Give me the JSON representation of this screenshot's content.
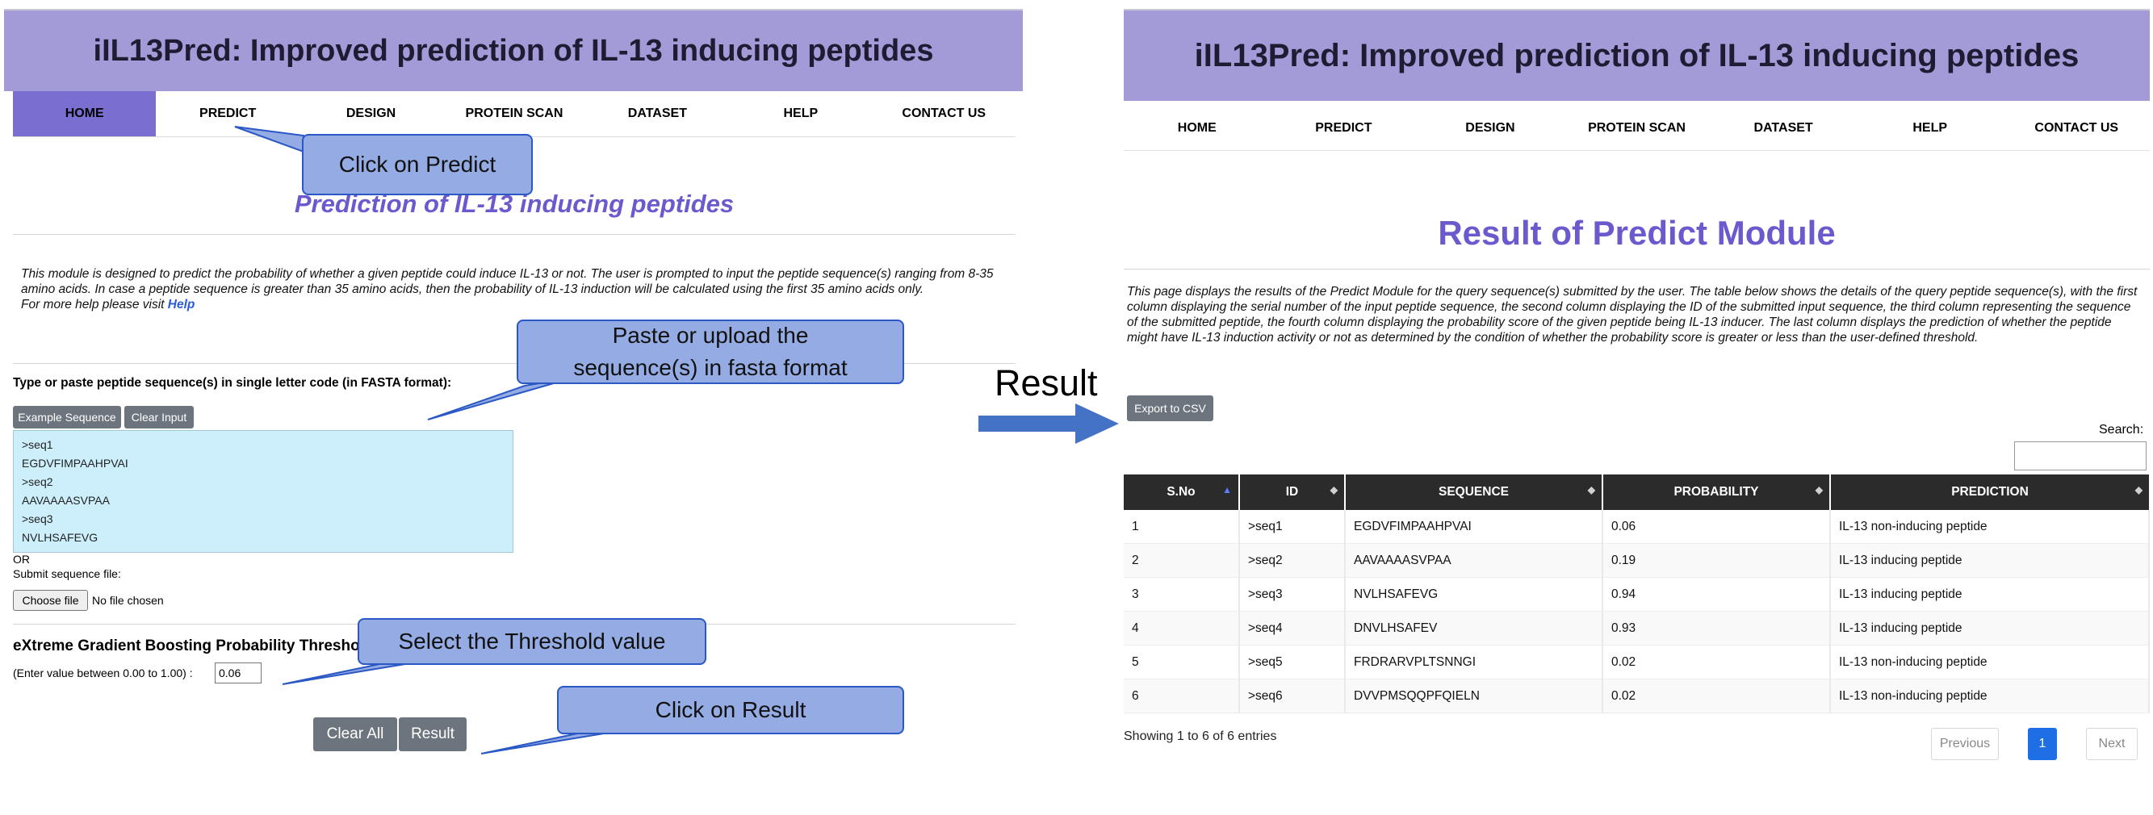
{
  "left": {
    "title": "iIL13Pred: Improved prediction of IL-13 inducing peptides",
    "nav": [
      "HOME",
      "PREDICT",
      "DESIGN",
      "PROTEIN SCAN",
      "DATASET",
      "HELP",
      "CONTACT US"
    ],
    "nav_active": "HOME",
    "heading": "Prediction of IL-13 inducing peptides",
    "description": "This module is designed to predict the probability of whether a given peptide could induce IL-13 or not. The user is prompted to input the peptide sequence(s) ranging from 8-35 amino acids. In case a peptide sequence is greater than 35 amino acids, then the probability of IL-13 induction will be calculated using the first 35 amino acids only.",
    "help_prefix": "For more help please visit",
    "help_link": "Help",
    "input_label": "Type or paste peptide sequence(s) in single letter code (in FASTA format):",
    "example_button": "Example Sequence",
    "clear_input_button": "Clear Input",
    "sequence_text": ">seq1\nEGDVFIMPAAHPVAI\n>seq2\nAAVAAAASVPAA\n>seq3\nNVLHSAFEVG",
    "or_text": "OR",
    "submit_file_label": "Submit sequence file:",
    "choose_file_button": "Choose file",
    "file_status": "No file chosen",
    "threshold_label": "eXtreme Gradient Boosting Probability Threshold:",
    "threshold_hint": "(Enter value between 0.00 to 1.00) :",
    "threshold_value": "0.06",
    "clear_all_button": "Clear All",
    "result_button": "Result"
  },
  "callouts": {
    "predict": "Click on Predict",
    "paste": "Paste or upload the sequence(s) in fasta format",
    "threshold": "Select the Threshold value",
    "result": "Click on Result"
  },
  "center_label": "Result",
  "right": {
    "title": "iIL13Pred: Improved prediction of IL-13 inducing peptides",
    "nav": [
      "HOME",
      "PREDICT",
      "DESIGN",
      "PROTEIN SCAN",
      "DATASET",
      "HELP",
      "CONTACT US"
    ],
    "heading": "Result of Predict Module",
    "description": "This page displays the results of the Predict Module for the query sequence(s) submitted by the user. The table below shows the details of the query peptide sequence(s), with the first column displaying the serial number of the input peptide sequence, the second column displaying the ID of the submitted input sequence, the third column representing the sequence of the submitted peptide, the fourth column displaying the probability score of the given peptide being IL-13 inducer. The last column displays the prediction of whether the peptide might have IL-13 induction activity or not as determined by the condition of whether the probability score is greater or less than the user-defined threshold.",
    "export_button": "Export to CSV",
    "search_label": "Search:",
    "columns": [
      "S.No",
      "ID",
      "SEQUENCE",
      "PROBABILITY",
      "PREDICTION"
    ],
    "rows": [
      [
        "1",
        ">seq1",
        "EGDVFIMPAAHPVAI",
        "0.06",
        "IL-13 non-inducing peptide"
      ],
      [
        "2",
        ">seq2",
        "AAVAAAASVPAA",
        "0.19",
        "IL-13 inducing peptide"
      ],
      [
        "3",
        ">seq3",
        "NVLHSAFEVG",
        "0.94",
        "IL-13 inducing peptide"
      ],
      [
        "4",
        ">seq4",
        "DNVLHSAFEV",
        "0.93",
        "IL-13 inducing peptide"
      ],
      [
        "5",
        ">seq5",
        "FRDRARVPLTSNNGI",
        "0.02",
        "IL-13 non-inducing peptide"
      ],
      [
        "6",
        ">seq6",
        "DVVPMSQQPFQIELN",
        "0.02",
        "IL-13 non-inducing peptide"
      ]
    ],
    "showing_text": "Showing 1 to 6 of 6 entries",
    "pagination": {
      "previous": "Previous",
      "page": "1",
      "next": "Next"
    }
  },
  "colors": {
    "title_bar": "#a29bd8",
    "nav_active": "#7a6fd1",
    "heading": "#6a5acd",
    "callout_fill": "#94abe3",
    "callout_border": "#2a58c4",
    "arrow": "#4472c4",
    "table_header": "#2b2b2b",
    "textarea_bg": "#cdeffc"
  }
}
